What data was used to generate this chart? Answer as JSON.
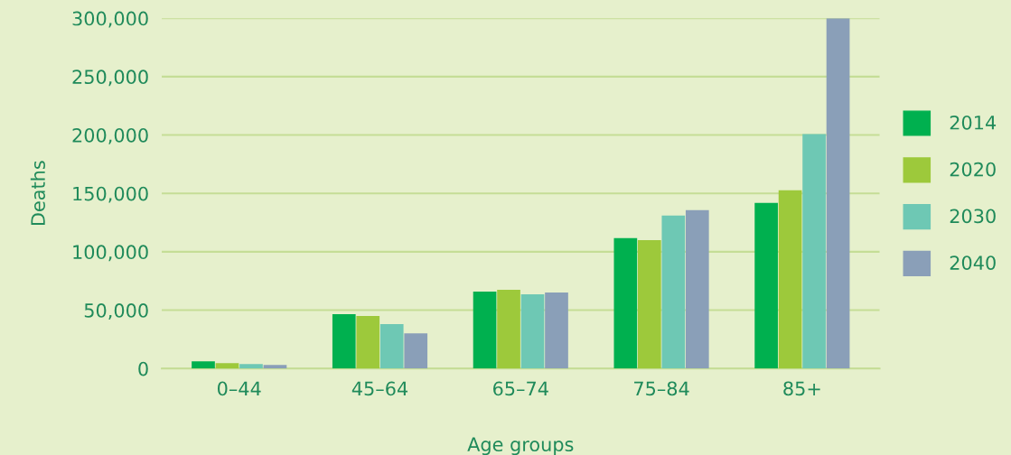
{
  "chart_data": {
    "type": "bar",
    "xlabel": "Age groups",
    "ylabel": "Deaths",
    "categories": [
      "0–44",
      "45–64",
      "65–74",
      "75–84",
      "85+"
    ],
    "series": [
      {
        "name": "2014",
        "color": "#00b04f",
        "values": [
          6200,
          46500,
          65900,
          111600,
          141800
        ]
      },
      {
        "name": "2020",
        "color": "#9dc93b",
        "values": [
          4600,
          45000,
          67400,
          110000,
          152700
        ]
      },
      {
        "name": "2030",
        "color": "#6ec8b4",
        "values": [
          3900,
          38000,
          63500,
          131000,
          200700
        ]
      },
      {
        "name": "2040",
        "color": "#8a9fb8",
        "values": [
          3100,
          30200,
          65100,
          135600,
          300000
        ]
      }
    ],
    "ylim": [
      0,
      300000
    ],
    "yticks": [
      {
        "value": 0,
        "label": "0"
      },
      {
        "value": 50000,
        "label": "50,000"
      },
      {
        "value": 100000,
        "label": "100,000"
      },
      {
        "value": 150000,
        "label": "150,000"
      },
      {
        "value": 200000,
        "label": "200,000"
      },
      {
        "value": 250000,
        "label": "250,000"
      },
      {
        "value": 300000,
        "label": "300,000"
      }
    ],
    "grid": "y",
    "legend": "right"
  }
}
